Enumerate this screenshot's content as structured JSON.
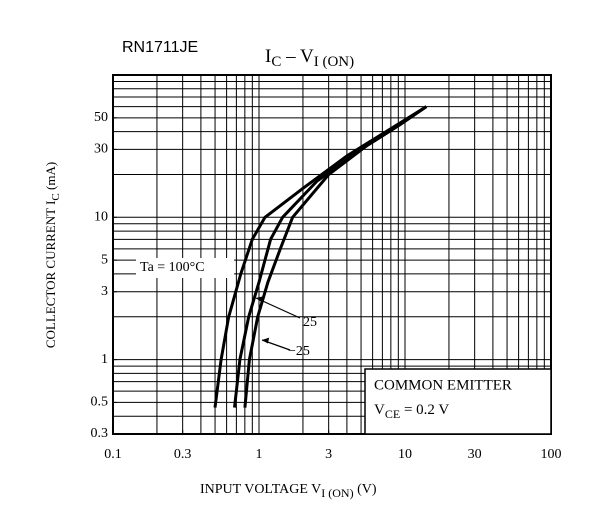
{
  "chart_data": {
    "type": "line",
    "part_number": "RN1711JE",
    "title": [
      "I",
      "C",
      " – V",
      "I (ON)"
    ],
    "y_label": [
      "COLLECTOR CURRENT  I",
      "C",
      "  (mA)"
    ],
    "x_label": [
      "INPUT VOLTAGE  V",
      "I (ON)",
      "  (V)"
    ],
    "annotation": [
      "COMMON EMITTER",
      "V",
      "CE",
      " = 0.2 V"
    ],
    "xscale": "log",
    "yscale": "log",
    "grid": true,
    "color": "#000000",
    "xlim": [
      0.1,
      100
    ],
    "ylim": [
      0.3,
      100
    ],
    "xticks": [
      0.1,
      0.3,
      1,
      3,
      10,
      30,
      100
    ],
    "yticks": [
      0.3,
      0.5,
      1,
      3,
      5,
      10,
      30,
      50
    ],
    "xgrid": [
      0.2,
      0.3,
      0.4,
      0.5,
      0.6,
      0.7,
      0.8,
      0.9,
      1,
      2,
      3,
      4,
      5,
      6,
      7,
      8,
      9,
      10,
      20,
      30,
      40,
      50,
      60,
      70,
      80,
      90
    ],
    "ygrid": [
      0.4,
      0.5,
      0.6,
      0.7,
      0.8,
      0.9,
      1,
      2,
      3,
      4,
      5,
      6,
      7,
      8,
      9,
      10,
      20,
      30,
      40,
      50,
      60,
      70,
      80,
      90
    ],
    "series": [
      {
        "name": "Ta = 100°C",
        "x": [
          0.5,
          0.55,
          0.62,
          0.75,
          0.9,
          1.1,
          2,
          4,
          8,
          14
        ],
        "values": [
          0.46,
          1,
          2,
          4,
          7,
          10,
          16,
          27,
          42,
          60
        ]
      },
      {
        "name": "25",
        "x": [
          0.68,
          0.74,
          0.85,
          1.0,
          1.2,
          1.45,
          2.5,
          5,
          9,
          14
        ],
        "values": [
          0.46,
          1,
          2,
          3.5,
          7,
          10,
          18,
          30,
          44,
          60
        ]
      },
      {
        "name": "−25",
        "x": [
          0.8,
          0.86,
          0.98,
          1.15,
          1.4,
          1.7,
          3,
          5.5,
          9,
          14
        ],
        "values": [
          0.46,
          1,
          2,
          3.5,
          6,
          10,
          20,
          32,
          44,
          60
        ]
      }
    ]
  }
}
